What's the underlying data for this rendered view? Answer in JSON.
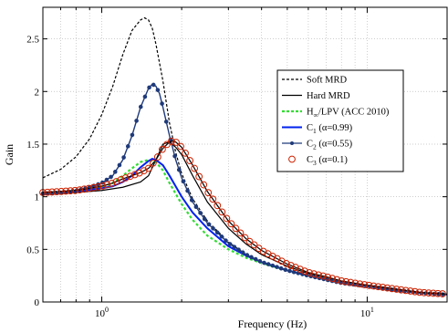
{
  "chart_data": {
    "type": "line",
    "xlabel": "Frequency (Hz)",
    "ylabel": "Gain",
    "xscale": "log",
    "xlim": [
      0.6,
      20
    ],
    "ylim": [
      0,
      2.8
    ],
    "grid": "dotted, major and minor",
    "legend_position": "right, inside plot",
    "x_ticks": [
      {
        "value": 1,
        "base": "10",
        "exp": "0"
      },
      {
        "value": 10,
        "base": "10",
        "exp": "1"
      }
    ],
    "y_ticks": [
      {
        "value": 0,
        "label": "0"
      },
      {
        "value": 0.5,
        "label": "0.5"
      },
      {
        "value": 1,
        "label": "1"
      },
      {
        "value": 1.5,
        "label": "1.5"
      },
      {
        "value": 2,
        "label": "2"
      },
      {
        "value": 2.5,
        "label": "2.5"
      }
    ],
    "series": [
      {
        "name": "Soft MRD",
        "label_parts": [
          "Soft MRD"
        ],
        "color": "#000000",
        "style": "dashed",
        "marker": "none",
        "points": [
          [
            0.6,
            1.18
          ],
          [
            0.7,
            1.26
          ],
          [
            0.8,
            1.38
          ],
          [
            0.9,
            1.55
          ],
          [
            1.0,
            1.78
          ],
          [
            1.1,
            2.05
          ],
          [
            1.2,
            2.35
          ],
          [
            1.3,
            2.58
          ],
          [
            1.4,
            2.68
          ],
          [
            1.45,
            2.7
          ],
          [
            1.5,
            2.68
          ],
          [
            1.55,
            2.6
          ],
          [
            1.6,
            2.45
          ],
          [
            1.7,
            2.1
          ],
          [
            1.8,
            1.7
          ],
          [
            1.9,
            1.42
          ],
          [
            2.0,
            1.22
          ],
          [
            2.2,
            0.98
          ],
          [
            2.5,
            0.77
          ],
          [
            3.0,
            0.57
          ],
          [
            3.5,
            0.45
          ],
          [
            4.0,
            0.38
          ],
          [
            5.0,
            0.3
          ],
          [
            6.0,
            0.25
          ],
          [
            8.0,
            0.18
          ],
          [
            10,
            0.15
          ],
          [
            13,
            0.11
          ],
          [
            16,
            0.085
          ],
          [
            20,
            0.07
          ]
        ]
      },
      {
        "name": "Hard MRD",
        "label_parts": [
          "Hard MRD"
        ],
        "color": "#000000",
        "style": "solid",
        "marker": "none",
        "points": [
          [
            0.6,
            1.02
          ],
          [
            0.8,
            1.04
          ],
          [
            1.0,
            1.06
          ],
          [
            1.2,
            1.09
          ],
          [
            1.4,
            1.14
          ],
          [
            1.5,
            1.2
          ],
          [
            1.6,
            1.35
          ],
          [
            1.7,
            1.5
          ],
          [
            1.8,
            1.52
          ],
          [
            1.9,
            1.47
          ],
          [
            2.0,
            1.4
          ],
          [
            2.2,
            1.2
          ],
          [
            2.5,
            0.95
          ],
          [
            3.0,
            0.7
          ],
          [
            3.5,
            0.55
          ],
          [
            4.0,
            0.45
          ],
          [
            5.0,
            0.34
          ],
          [
            6.0,
            0.27
          ],
          [
            8.0,
            0.19
          ],
          [
            10,
            0.15
          ],
          [
            13,
            0.11
          ],
          [
            16,
            0.085
          ],
          [
            20,
            0.07
          ]
        ]
      },
      {
        "name": "H∞/LPV (ACC 2010)",
        "label_parts": [
          "H",
          "∞",
          "/LPV (ACC 2010)"
        ],
        "color": "#33dd33",
        "style": "dashed",
        "marker": "none",
        "points": [
          [
            0.6,
            1.03
          ],
          [
            0.8,
            1.05
          ],
          [
            1.0,
            1.09
          ],
          [
            1.1,
            1.13
          ],
          [
            1.2,
            1.2
          ],
          [
            1.3,
            1.27
          ],
          [
            1.4,
            1.33
          ],
          [
            1.5,
            1.35
          ],
          [
            1.6,
            1.33
          ],
          [
            1.7,
            1.25
          ],
          [
            1.8,
            1.13
          ],
          [
            2.0,
            0.93
          ],
          [
            2.2,
            0.78
          ],
          [
            2.5,
            0.63
          ],
          [
            3.0,
            0.5
          ],
          [
            3.5,
            0.42
          ],
          [
            4.0,
            0.37
          ],
          [
            5.0,
            0.3
          ],
          [
            6.0,
            0.25
          ],
          [
            8.0,
            0.18
          ],
          [
            10,
            0.15
          ],
          [
            13,
            0.11
          ],
          [
            16,
            0.085
          ],
          [
            20,
            0.07
          ]
        ]
      },
      {
        "name": "C1 (α=0.99)",
        "label_parts": [
          "C",
          "1",
          " (α=0.99)"
        ],
        "color": "#0022ee",
        "style": "solid",
        "marker": "none",
        "points": [
          [
            0.6,
            1.03
          ],
          [
            0.8,
            1.05
          ],
          [
            1.0,
            1.08
          ],
          [
            1.1,
            1.1
          ],
          [
            1.2,
            1.14
          ],
          [
            1.3,
            1.2
          ],
          [
            1.4,
            1.28
          ],
          [
            1.5,
            1.34
          ],
          [
            1.55,
            1.36
          ],
          [
            1.6,
            1.35
          ],
          [
            1.7,
            1.3
          ],
          [
            1.8,
            1.2
          ],
          [
            2.0,
            1.0
          ],
          [
            2.2,
            0.85
          ],
          [
            2.5,
            0.7
          ],
          [
            3.0,
            0.53
          ],
          [
            3.5,
            0.44
          ],
          [
            4.0,
            0.38
          ],
          [
            5.0,
            0.3
          ],
          [
            6.0,
            0.25
          ],
          [
            8.0,
            0.18
          ],
          [
            10,
            0.15
          ],
          [
            13,
            0.11
          ],
          [
            16,
            0.085
          ],
          [
            20,
            0.07
          ]
        ]
      },
      {
        "name": "C2 (α=0.55)",
        "label_parts": [
          "C",
          "2",
          " (α=0.55)"
        ],
        "color": "#1f3a7a",
        "style": "solid",
        "marker": "dot",
        "points": [
          [
            0.6,
            1.03
          ],
          [
            0.7,
            1.04
          ],
          [
            0.8,
            1.06
          ],
          [
            0.9,
            1.09
          ],
          [
            1.0,
            1.13
          ],
          [
            1.1,
            1.2
          ],
          [
            1.2,
            1.35
          ],
          [
            1.3,
            1.58
          ],
          [
            1.4,
            1.85
          ],
          [
            1.5,
            2.03
          ],
          [
            1.55,
            2.07
          ],
          [
            1.6,
            2.05
          ],
          [
            1.65,
            1.98
          ],
          [
            1.7,
            1.85
          ],
          [
            1.8,
            1.58
          ],
          [
            1.9,
            1.35
          ],
          [
            2.0,
            1.18
          ],
          [
            2.2,
            0.95
          ],
          [
            2.5,
            0.75
          ],
          [
            3.0,
            0.56
          ],
          [
            3.5,
            0.45
          ],
          [
            4.0,
            0.38
          ],
          [
            5.0,
            0.3
          ],
          [
            6.0,
            0.25
          ],
          [
            8.0,
            0.18
          ],
          [
            10,
            0.15
          ],
          [
            13,
            0.11
          ],
          [
            16,
            0.085
          ],
          [
            20,
            0.07
          ]
        ]
      },
      {
        "name": "C3 (α=0.1)",
        "label_parts": [
          "C",
          "3",
          " (α=0.1)"
        ],
        "color": "#cc2200",
        "style": "solid-black",
        "marker": "circle",
        "points": [
          [
            0.6,
            1.04
          ],
          [
            0.7,
            1.05
          ],
          [
            0.8,
            1.06
          ],
          [
            0.9,
            1.08
          ],
          [
            1.0,
            1.1
          ],
          [
            1.1,
            1.13
          ],
          [
            1.2,
            1.17
          ],
          [
            1.3,
            1.2
          ],
          [
            1.4,
            1.23
          ],
          [
            1.5,
            1.27
          ],
          [
            1.6,
            1.35
          ],
          [
            1.7,
            1.46
          ],
          [
            1.8,
            1.52
          ],
          [
            1.85,
            1.53
          ],
          [
            1.9,
            1.52
          ],
          [
            2.0,
            1.47
          ],
          [
            2.2,
            1.3
          ],
          [
            2.5,
            1.05
          ],
          [
            3.0,
            0.77
          ],
          [
            3.5,
            0.6
          ],
          [
            4.0,
            0.49
          ],
          [
            5.0,
            0.36
          ],
          [
            6.0,
            0.28
          ],
          [
            7.0,
            0.24
          ],
          [
            8.0,
            0.2
          ],
          [
            10,
            0.16
          ],
          [
            13,
            0.12
          ],
          [
            16,
            0.09
          ],
          [
            20,
            0.075
          ]
        ]
      }
    ]
  }
}
